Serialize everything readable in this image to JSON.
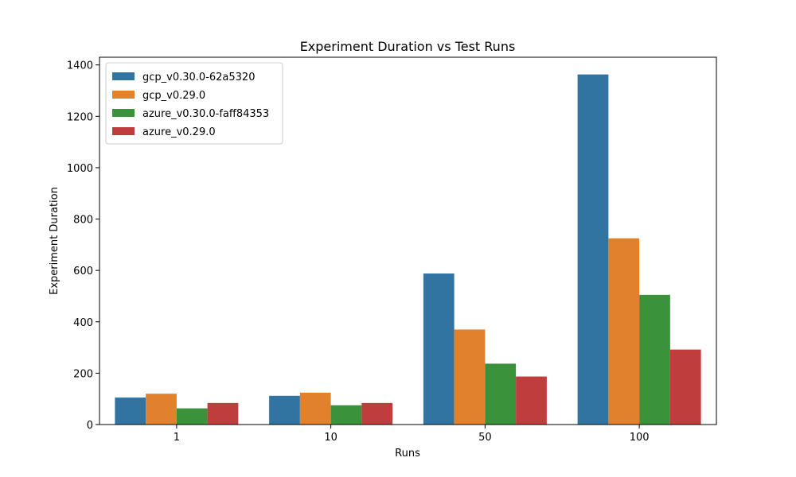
{
  "chart_data": {
    "type": "bar",
    "title": "Experiment Duration vs Test Runs",
    "xlabel": "Runs",
    "ylabel": "Experiment Duration",
    "categories": [
      "1",
      "10",
      "50",
      "100"
    ],
    "ylim": [
      0,
      1430
    ],
    "yticks": [
      0,
      200,
      400,
      600,
      800,
      1000,
      1200,
      1400
    ],
    "legend_position": "top-left",
    "grid": false,
    "series": [
      {
        "name": "gcp_v0.30.0-62a5320",
        "color": "#3274a1",
        "values": [
          105,
          112,
          588,
          1363
        ]
      },
      {
        "name": "gcp_v0.29.0",
        "color": "#e1812c",
        "values": [
          120,
          124,
          370,
          725
        ]
      },
      {
        "name": "azure_v0.30.0-faff84353",
        "color": "#3a923a",
        "values": [
          63,
          75,
          237,
          505
        ]
      },
      {
        "name": "azure_v0.29.0",
        "color": "#c03d3e",
        "values": [
          84,
          84,
          187,
          292
        ]
      }
    ]
  }
}
